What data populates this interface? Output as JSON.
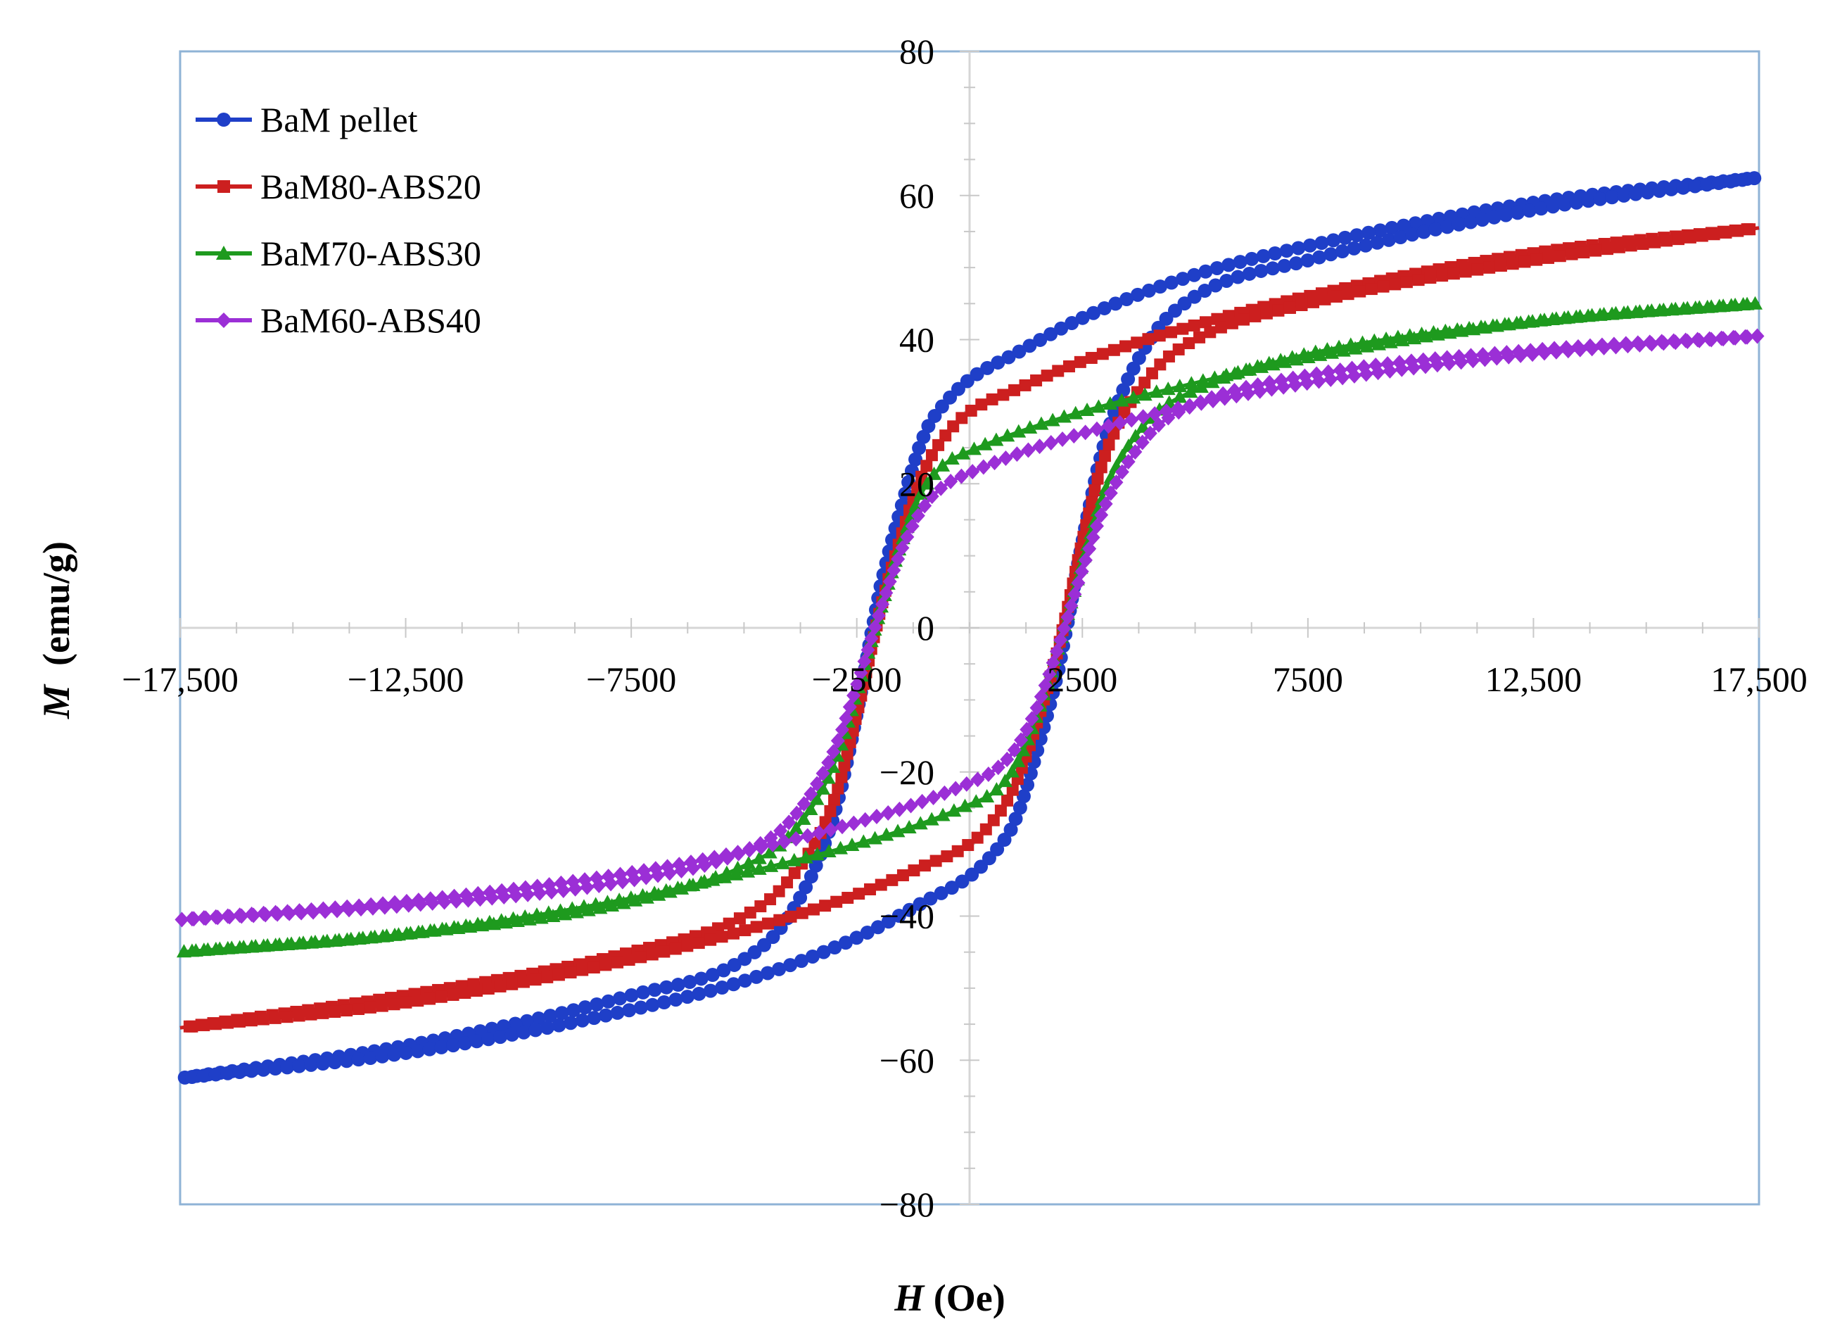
{
  "chart_data": {
    "type": "scatter",
    "title": "",
    "xlabel_var": "H",
    "xlabel_unit": " (Oe)",
    "ylabel_var": "M",
    "ylabel_unit": "  (emu/g)",
    "xlim": [
      -17500,
      17500
    ],
    "ylim": [
      -80,
      80
    ],
    "x_ticks": [
      -17500,
      -12500,
      -7500,
      -2500,
      2500,
      7500,
      12500,
      17500
    ],
    "x_tick_labels": [
      "−17,500",
      "−12,500",
      "−7500",
      "−2500",
      "2500",
      "7500",
      "12,500",
      "17,500"
    ],
    "y_ticks": [
      -80,
      -60,
      -40,
      -20,
      0,
      20,
      40,
      60,
      80
    ],
    "y_tick_labels": [
      "−80",
      "−60",
      "−40",
      "−20",
      "0",
      "20",
      "40",
      "60",
      "80"
    ],
    "grid": false,
    "legend_position": "top-left",
    "series": [
      {
        "name": "BaM pellet",
        "color": "#1f3fc8",
        "marker": "circle",
        "upper_branch": {
          "x": [
            17500,
            12500,
            7500,
            5000,
            2500,
            1000,
            0,
            -500,
            -1000,
            -1500,
            -2000,
            -2500,
            -3000,
            -4000,
            -5000,
            -7500,
            -12500,
            -17500
          ],
          "y": [
            62.5,
            59,
            53,
            49,
            43,
            38,
            34.5,
            31.5,
            27,
            17,
            5,
            -12,
            -26,
            -40,
            -46,
            -51,
            -58,
            -62.5
          ]
        },
        "lower_branch": {
          "x": [
            -17500,
            -12500,
            -7500,
            -5000,
            -2500,
            -1000,
            0,
            500,
            1000,
            1500,
            2000,
            2500,
            3000,
            4000,
            5000,
            7500,
            12500,
            17500
          ],
          "y": [
            -62.5,
            -59,
            -53,
            -49,
            -43,
            -38,
            -34.5,
            -31.5,
            -27,
            -17,
            -5,
            12,
            26,
            40,
            46,
            51,
            58,
            62.5
          ]
        }
      },
      {
        "name": "BaM80-ABS20",
        "color": "#cc1f1f",
        "marker": "square",
        "upper_branch": {
          "x": [
            17500,
            12500,
            7500,
            5000,
            2500,
            1000,
            0,
            -500,
            -1000,
            -1500,
            -2000,
            -2500,
            -3000,
            -4000,
            -5000,
            -7500,
            -12500,
            -17500
          ],
          "y": [
            55.5,
            52,
            46,
            42,
            37,
            33,
            30,
            27,
            22,
            13,
            2,
            -12,
            -24,
            -35,
            -40,
            -45,
            -51,
            -55.5
          ]
        },
        "lower_branch": {
          "x": [
            -17500,
            -12500,
            -7500,
            -5000,
            -2500,
            -1000,
            0,
            500,
            1000,
            1500,
            2000,
            2500,
            3000,
            4000,
            5000,
            7500,
            12500,
            17500
          ],
          "y": [
            -55.5,
            -52,
            -46,
            -42,
            -37,
            -33,
            -30,
            -27,
            -22,
            -13,
            -2,
            12,
            24,
            35,
            40,
            45,
            51,
            55.5
          ]
        }
      },
      {
        "name": "BaM70-ABS30",
        "color": "#1e9a1e",
        "marker": "triangle",
        "upper_branch": {
          "x": [
            17500,
            12500,
            7500,
            5000,
            2500,
            1000,
            0,
            -500,
            -1000,
            -1500,
            -2000,
            -2500,
            -3000,
            -4000,
            -5000,
            -7500,
            -12500,
            -17500
          ],
          "y": [
            45,
            42.5,
            37.5,
            34,
            30,
            27,
            24.5,
            23,
            19.5,
            12,
            2,
            -9,
            -19,
            -29,
            -33,
            -38,
            -42.5,
            -45
          ]
        },
        "lower_branch": {
          "x": [
            -17500,
            -12500,
            -7500,
            -5000,
            -2500,
            -1000,
            0,
            500,
            1000,
            1500,
            2000,
            2500,
            3000,
            4000,
            5000,
            7500,
            12500,
            17500
          ],
          "y": [
            -45,
            -42.5,
            -37.5,
            -34,
            -30,
            -27,
            -24.5,
            -23,
            -19.5,
            -12,
            -2,
            9,
            19,
            29,
            33,
            38,
            42.5,
            45
          ]
        }
      },
      {
        "name": "BaM60-ABS40",
        "color": "#9b2fd6",
        "marker": "diamond",
        "upper_branch": {
          "x": [
            17500,
            12500,
            7500,
            5000,
            2500,
            1000,
            0,
            -500,
            -1000,
            -1500,
            -2000,
            -2500,
            -3000,
            -4000,
            -5000,
            -7500,
            -12500,
            -17500
          ],
          "y": [
            40.5,
            38,
            34,
            31,
            27,
            24,
            21.5,
            20,
            17,
            11,
            2,
            -8,
            -17,
            -27,
            -31,
            -35,
            -38.5,
            -40.5
          ]
        },
        "lower_branch": {
          "x": [
            -17500,
            -12500,
            -7500,
            -5000,
            -2500,
            -1000,
            0,
            500,
            1000,
            1500,
            2000,
            2500,
            3000,
            4000,
            5000,
            7500,
            12500,
            17500
          ],
          "y": [
            -40.5,
            -38,
            -34,
            -31,
            -27,
            -24,
            -21.5,
            -20,
            -17,
            -11,
            -2,
            8,
            17,
            27,
            31,
            35,
            38.5,
            40.5
          ]
        }
      }
    ]
  }
}
